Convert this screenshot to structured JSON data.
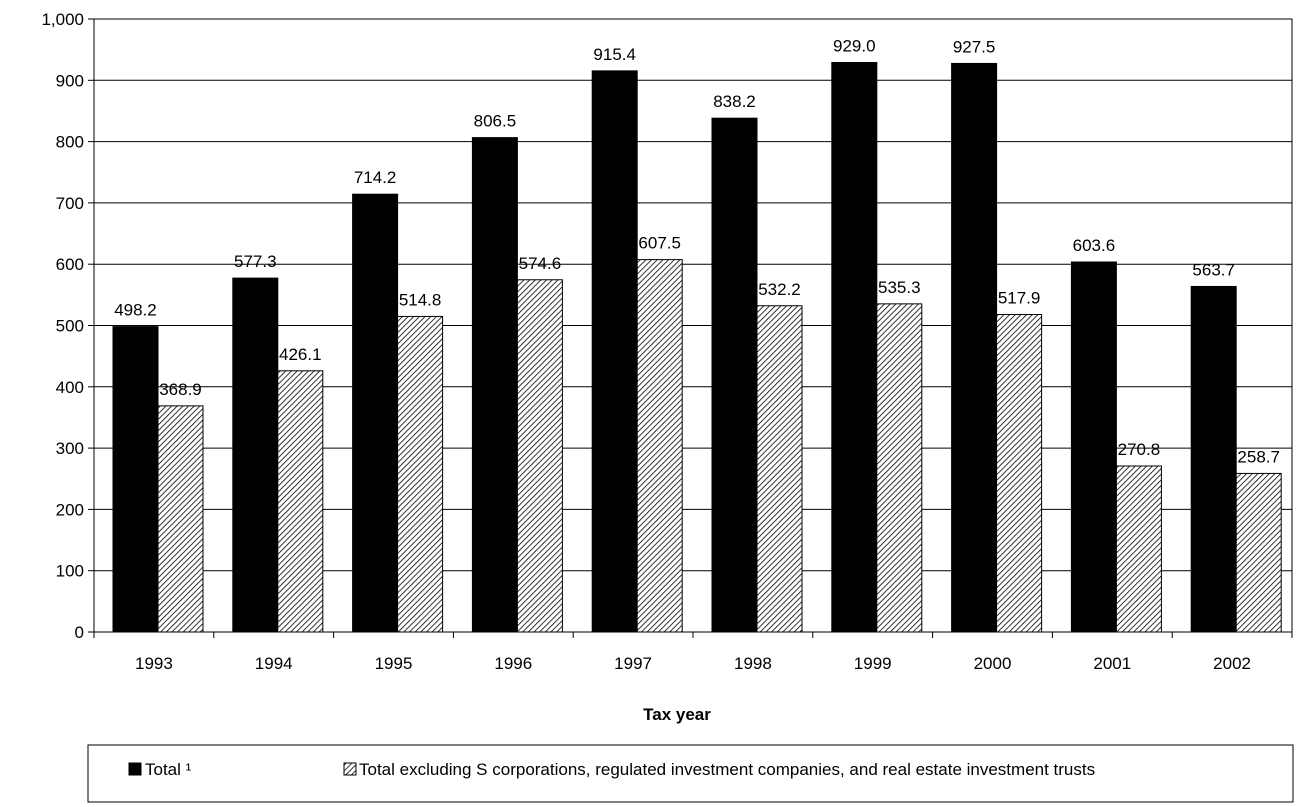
{
  "chart_data": {
    "type": "bar",
    "categories": [
      "1993",
      "1994",
      "1995",
      "1996",
      "1997",
      "1998",
      "1999",
      "2000",
      "2001",
      "2002"
    ],
    "series": [
      {
        "name": "Total ¹",
        "values": [
          498.2,
          577.3,
          714.2,
          806.5,
          915.4,
          838.2,
          929.0,
          927.5,
          603.6,
          563.7
        ],
        "labels": [
          "498.2",
          "577.3",
          "714.2",
          "806.5",
          "915.4",
          "838.2",
          "929.0",
          "927.5",
          "603.6",
          "563.7"
        ],
        "color": "#000000",
        "fill": "solid"
      },
      {
        "name": "Total excluding S corporations, regulated investment companies, and real estate investment trusts",
        "values": [
          368.9,
          426.1,
          514.8,
          574.6,
          607.5,
          532.2,
          535.3,
          517.9,
          270.8,
          258.7
        ],
        "labels": [
          "368.9",
          "426.1",
          "514.8",
          "574.6",
          "607.5",
          "532.2",
          "535.3",
          "517.9",
          "270.8",
          "258.7"
        ],
        "color": "#000000",
        "fill": "diagonal-hatch"
      }
    ],
    "title": "",
    "xlabel": "Tax year",
    "ylabel": "",
    "ylim": [
      0,
      1000
    ],
    "yticks": [
      0,
      100,
      200,
      300,
      400,
      500,
      600,
      700,
      800,
      900,
      1000
    ],
    "ytick_labels": [
      "0",
      "100",
      "200",
      "300",
      "400",
      "500",
      "600",
      "700",
      "800",
      "900",
      "1,000"
    ],
    "grid": true,
    "legend_position": "bottom"
  }
}
